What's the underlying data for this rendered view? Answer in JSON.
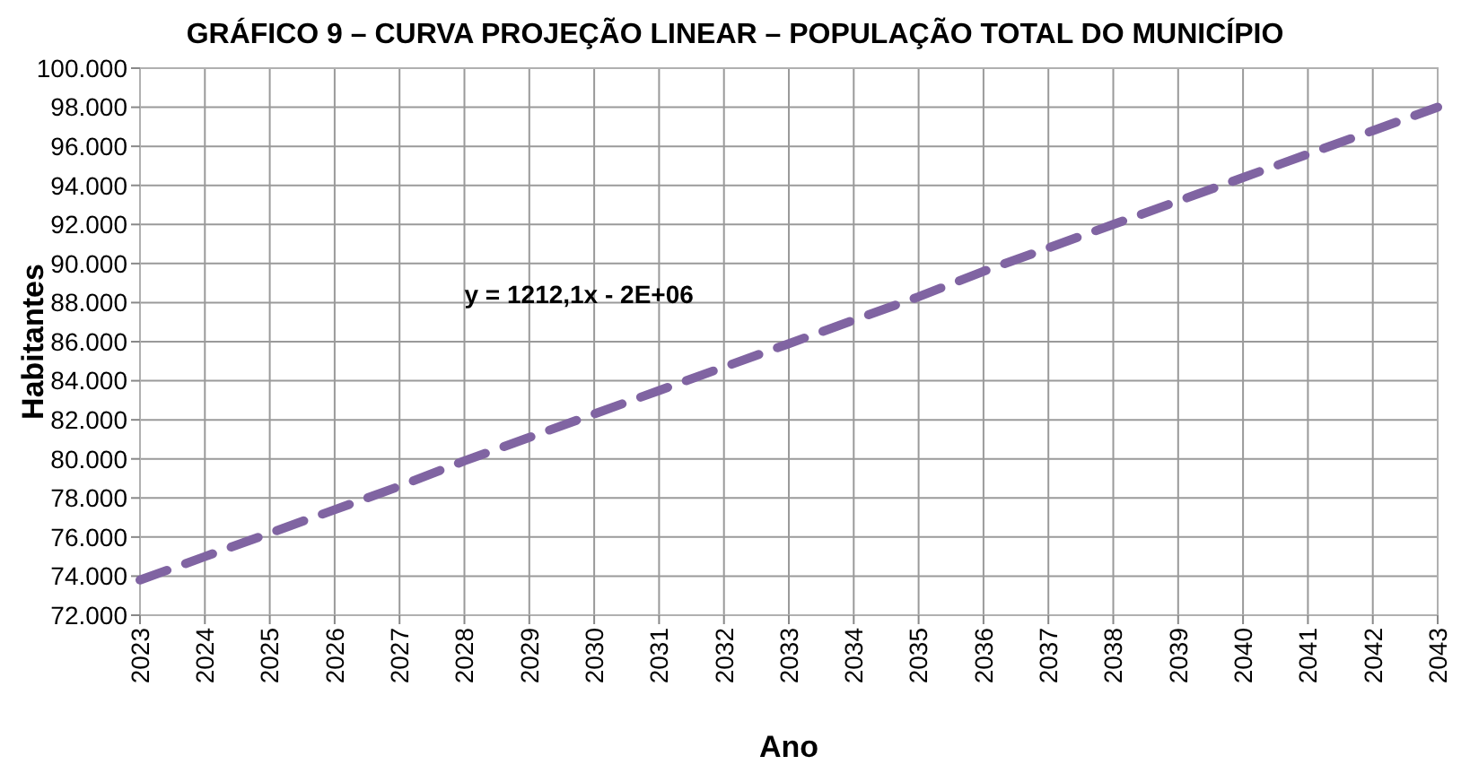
{
  "chart_data": {
    "type": "line",
    "title": "GRÁFICO 9 – CURVA PROJEÇÃO LINEAR – POPULAÇÃO TOTAL DO MUNICÍPIO",
    "xlabel": "Ano",
    "ylabel": "Habitantes",
    "x": [
      2023,
      2024,
      2025,
      2026,
      2027,
      2028,
      2029,
      2030,
      2031,
      2032,
      2033,
      2034,
      2035,
      2036,
      2037,
      2038,
      2039,
      2040,
      2041,
      2042,
      2043
    ],
    "series": [
      {
        "color": "#8064a2",
        "values": [
          73800,
          75000,
          76200,
          77400,
          78600,
          79900,
          81100,
          82300,
          83500,
          84700,
          85900,
          87100,
          88300,
          89600,
          90800,
          92000,
          93200,
          94400,
          95600,
          96800,
          98000
        ]
      }
    ],
    "xlim": [
      2023,
      2043
    ],
    "xticks": [
      2023,
      2024,
      2025,
      2026,
      2027,
      2028,
      2029,
      2030,
      2031,
      2032,
      2033,
      2034,
      2035,
      2036,
      2037,
      2038,
      2039,
      2040,
      2041,
      2042,
      2043
    ],
    "ylim": [
      72000,
      100000
    ],
    "yticks": [
      {
        "value": 72000,
        "label": "72.000"
      },
      {
        "value": 74000,
        "label": "74.000"
      },
      {
        "value": 76000,
        "label": "76.000"
      },
      {
        "value": 78000,
        "label": "78.000"
      },
      {
        "value": 80000,
        "label": "80.000"
      },
      {
        "value": 82000,
        "label": "82.000"
      },
      {
        "value": 84000,
        "label": "84.000"
      },
      {
        "value": 86000,
        "label": "86.000"
      },
      {
        "value": 88000,
        "label": "88.000"
      },
      {
        "value": 90000,
        "label": "90.000"
      },
      {
        "value": 92000,
        "label": "92.000"
      },
      {
        "value": 94000,
        "label": "94.000"
      },
      {
        "value": 96000,
        "label": "96.000"
      },
      {
        "value": 98000,
        "label": "98.000"
      },
      {
        "value": 100000,
        "label": "100.000"
      }
    ],
    "annotations": [
      "y = 1212,1x - 2E+06"
    ],
    "grid": true,
    "line_style": "dashed",
    "marker": "none"
  }
}
